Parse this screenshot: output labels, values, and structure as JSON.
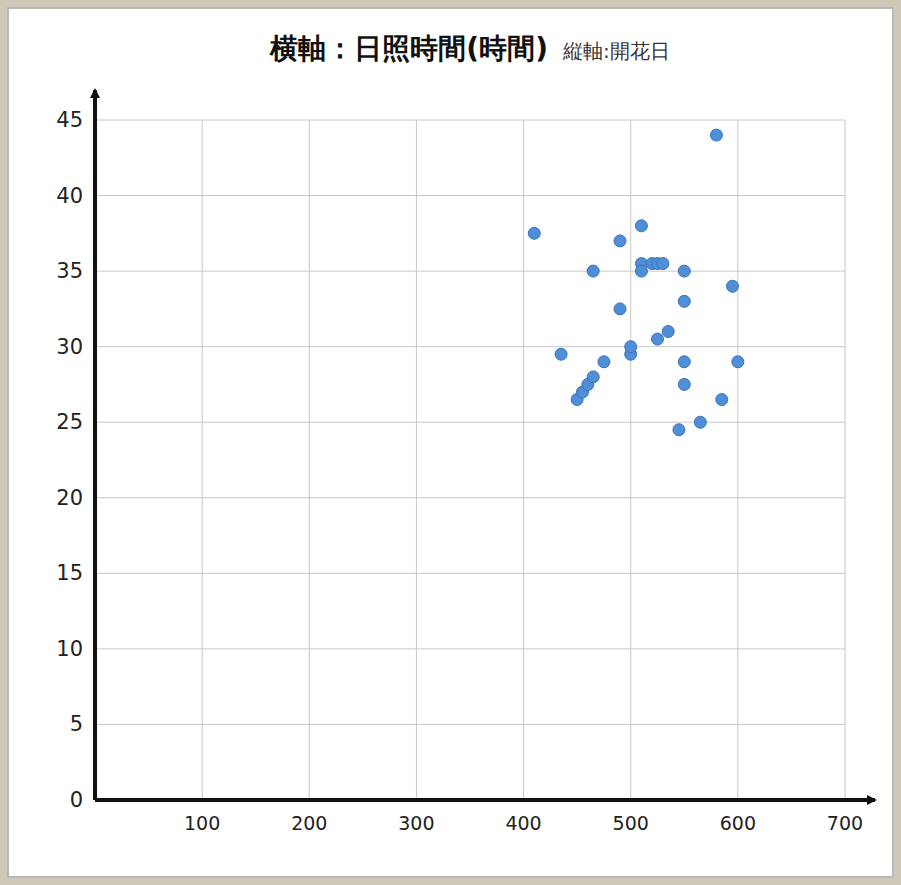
{
  "chart_data": {
    "type": "scatter",
    "title": "横軸：日照時間(時間)",
    "subtitle": "縦軸:開花日",
    "x": [
      410,
      435,
      450,
      455,
      460,
      465,
      465,
      475,
      490,
      490,
      500,
      500,
      510,
      510,
      510,
      520,
      525,
      530,
      525,
      535,
      550,
      550,
      550,
      550,
      545,
      565,
      580,
      585,
      595,
      600
    ],
    "values": [
      37.5,
      29.5,
      26.5,
      27,
      27.5,
      35,
      28,
      29,
      37,
      32.5,
      29.5,
      30,
      38,
      35.5,
      35,
      35.5,
      35.5,
      35.5,
      30.5,
      31,
      35,
      33,
      29,
      27.5,
      24.5,
      25,
      44,
      26.5,
      34,
      29
    ],
    "color": "#4f8fd8",
    "marker": "circle",
    "xlim": [
      0,
      700
    ],
    "xticks": [
      100,
      200,
      300,
      400,
      500,
      600,
      700
    ],
    "ylim": [
      0,
      45
    ],
    "yticks": [
      0,
      5,
      10,
      15,
      20,
      25,
      30,
      35,
      40,
      45
    ],
    "grid": true
  }
}
